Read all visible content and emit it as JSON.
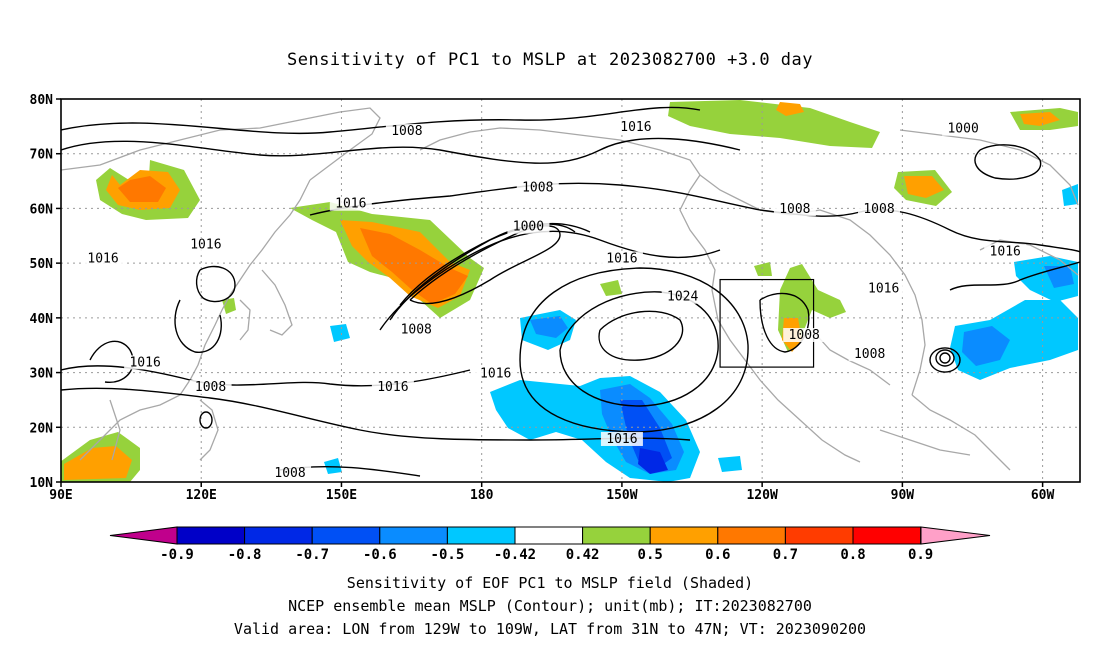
{
  "title": "Sensitivity of PC1 to MSLP at 2023082700 +3.0 day",
  "map": {
    "lon_range": [
      90,
      308
    ],
    "lat_range": [
      10,
      80
    ],
    "lat_ticks": [
      {
        "lat": 80,
        "label": "80N"
      },
      {
        "lat": 70,
        "label": "70N"
      },
      {
        "lat": 60,
        "label": "60N"
      },
      {
        "lat": 50,
        "label": "50N"
      },
      {
        "lat": 40,
        "label": "40N"
      },
      {
        "lat": 30,
        "label": "30N"
      },
      {
        "lat": 20,
        "label": "20N"
      },
      {
        "lat": 10,
        "label": "10N"
      }
    ],
    "lon_ticks": [
      {
        "lon": 90,
        "label": "90E"
      },
      {
        "lon": 120,
        "label": "120E"
      },
      {
        "lon": 150,
        "label": "150E"
      },
      {
        "lon": 180,
        "label": "180"
      },
      {
        "lon": 210,
        "label": "150W"
      },
      {
        "lon": 240,
        "label": "120W"
      },
      {
        "lon": 270,
        "label": "90W"
      },
      {
        "lon": 300,
        "label": "60W"
      }
    ],
    "grid": true,
    "valid_box": {
      "lon_min": 231,
      "lon_max": 251,
      "lat_min": 31,
      "lat_max": 47
    },
    "contour_labels": [
      {
        "text": "1008",
        "lon": 164,
        "lat": 73.8
      },
      {
        "text": "1016",
        "lon": 213,
        "lat": 74.5
      },
      {
        "text": "1000",
        "lon": 283,
        "lat": 74.2
      },
      {
        "text": "1008",
        "lon": 192,
        "lat": 63.5
      },
      {
        "text": "1008",
        "lon": 247,
        "lat": 59.5
      },
      {
        "text": "1008",
        "lon": 265,
        "lat": 59.5
      },
      {
        "text": "1016",
        "lon": 152,
        "lat": 60.5
      },
      {
        "text": "1000",
        "lon": 190,
        "lat": 56.3
      },
      {
        "text": "1016",
        "lon": 121,
        "lat": 53.0
      },
      {
        "text": "1016",
        "lon": 99,
        "lat": 50.5
      },
      {
        "text": "1016",
        "lon": 210,
        "lat": 50.5
      },
      {
        "text": "1016",
        "lon": 292,
        "lat": 51.8
      },
      {
        "text": "1024",
        "lon": 223,
        "lat": 43.5
      },
      {
        "text": "1016",
        "lon": 266,
        "lat": 45.0
      },
      {
        "text": "1008",
        "lon": 166,
        "lat": 37.5
      },
      {
        "text": "1008",
        "lon": 249,
        "lat": 36.5
      },
      {
        "text": "1008",
        "lon": 263,
        "lat": 33.0
      },
      {
        "text": "1016",
        "lon": 108,
        "lat": 31.5
      },
      {
        "text": "1016",
        "lon": 161,
        "lat": 27.0
      },
      {
        "text": "1016",
        "lon": 183,
        "lat": 29.5
      },
      {
        "text": "1008",
        "lon": 122,
        "lat": 27.0
      },
      {
        "text": "1016",
        "lon": 210,
        "lat": 17.5
      },
      {
        "text": "1008",
        "lon": 139,
        "lat": 11.3
      }
    ]
  },
  "colorbar": {
    "bounds": [
      "-0.9",
      "-0.8",
      "-0.7",
      "-0.6",
      "-0.5",
      "-0.42",
      "0.42",
      "0.5",
      "0.6",
      "0.7",
      "0.8",
      "0.9"
    ],
    "colors": [
      "#c0008c",
      "#0000c8",
      "#0028e6",
      "#0050f5",
      "#0a8cff",
      "#00c8ff",
      "#ffffff",
      "#96d23c",
      "#ffa000",
      "#ff7800",
      "#ff3c00",
      "#ff0000",
      "#ffa0c8"
    ]
  },
  "footer": {
    "line1": "Sensitivity of EOF PC1 to MSLP field (Shaded)",
    "line2": "NCEP ensemble mean MSLP (Contour); unit(mb); IT:2023082700",
    "line3": "Valid area: LON from 129W to 109W, LAT from 31N to 47N; VT: 2023090200"
  }
}
